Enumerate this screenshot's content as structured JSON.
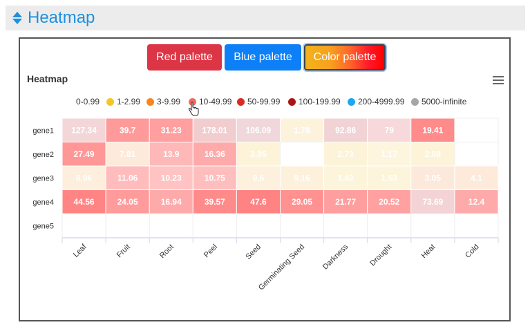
{
  "section": {
    "title": "Heatmap"
  },
  "palettes": {
    "red": "Red palette",
    "blue": "Blue palette",
    "color": "Color palette"
  },
  "chart_data": {
    "type": "heatmap",
    "title": "Heatmap",
    "xcategories": [
      "Leaf",
      "Fruit",
      "Root",
      "Peel",
      "Seed",
      "Germinating Seed",
      "Darkness",
      "Drought",
      "Heat",
      "Cold"
    ],
    "ycategories": [
      "gene1",
      "gene2",
      "gene3",
      "gene4",
      "gene5"
    ],
    "values": [
      [
        127.34,
        39.7,
        31.23,
        178.01,
        106.09,
        1.78,
        92.86,
        79,
        19.41,
        null
      ],
      [
        27.49,
        7.81,
        13.9,
        16.36,
        2.35,
        null,
        2.73,
        1.17,
        2.08,
        null
      ],
      [
        8.96,
        11.06,
        10.23,
        10.75,
        9.6,
        9.16,
        1.42,
        1.53,
        3.05,
        4.1
      ],
      [
        44.56,
        24.05,
        16.94,
        39.57,
        47.6,
        29.05,
        21.77,
        20.52,
        73.69,
        12.4
      ],
      [
        null,
        null,
        null,
        null,
        null,
        null,
        null,
        null,
        null,
        null
      ]
    ],
    "legend": [
      {
        "label": "0-0.99",
        "color": null
      },
      {
        "label": "1-2.99",
        "color": "#f5c623"
      },
      {
        "label": "3-9.99",
        "color": "#f7861c"
      },
      {
        "label": "10-49.99",
        "color": "#f26b5b"
      },
      {
        "label": "50-99.99",
        "color": "#d92b24"
      },
      {
        "label": "100-199.99",
        "color": "#a91616"
      },
      {
        "label": "200-4999.99",
        "color": "#1aa8f0"
      },
      {
        "label": "5000-infinite",
        "color": "#a6a6a6"
      }
    ],
    "cell_colors": [
      [
        "#f3d6d8",
        "#ff9a9a",
        "#ff9f9f",
        "#f2cdd0",
        "#efd7db",
        "#fdf3dc",
        "#f1d3d6",
        "#f7d8db",
        "#ff8b8b",
        "#ffffff"
      ],
      [
        "#ff9797",
        "#fdeadb",
        "#ffb8b8",
        "#ffaaaa",
        "#fdf3d8",
        "#ffffff",
        "#fdf3d8",
        "#fdf5dd",
        "#fdf3d8",
        "#ffffff"
      ],
      [
        "#fdeedd",
        "#ffbcbc",
        "#ffc3c3",
        "#ffbebe",
        "#fdf0dc",
        "#fdf1dc",
        "#fdf4dc",
        "#fdf4dc",
        "#fde9db",
        "#fdeadb"
      ],
      [
        "#ff8585",
        "#ff9b9b",
        "#ffaaaa",
        "#ff8a8a",
        "#ff8383",
        "#ff9191",
        "#ff9e9e",
        "#ffa1a1",
        "#f3d3d6",
        "#ffaaaa"
      ],
      [
        "#ffffff",
        "#ffffff",
        "#ffffff",
        "#ffffff",
        "#ffffff",
        "#ffffff",
        "#ffffff",
        "#ffffff",
        "#ffffff",
        "#ffffff"
      ]
    ],
    "grid": true,
    "legend_position": "top"
  }
}
